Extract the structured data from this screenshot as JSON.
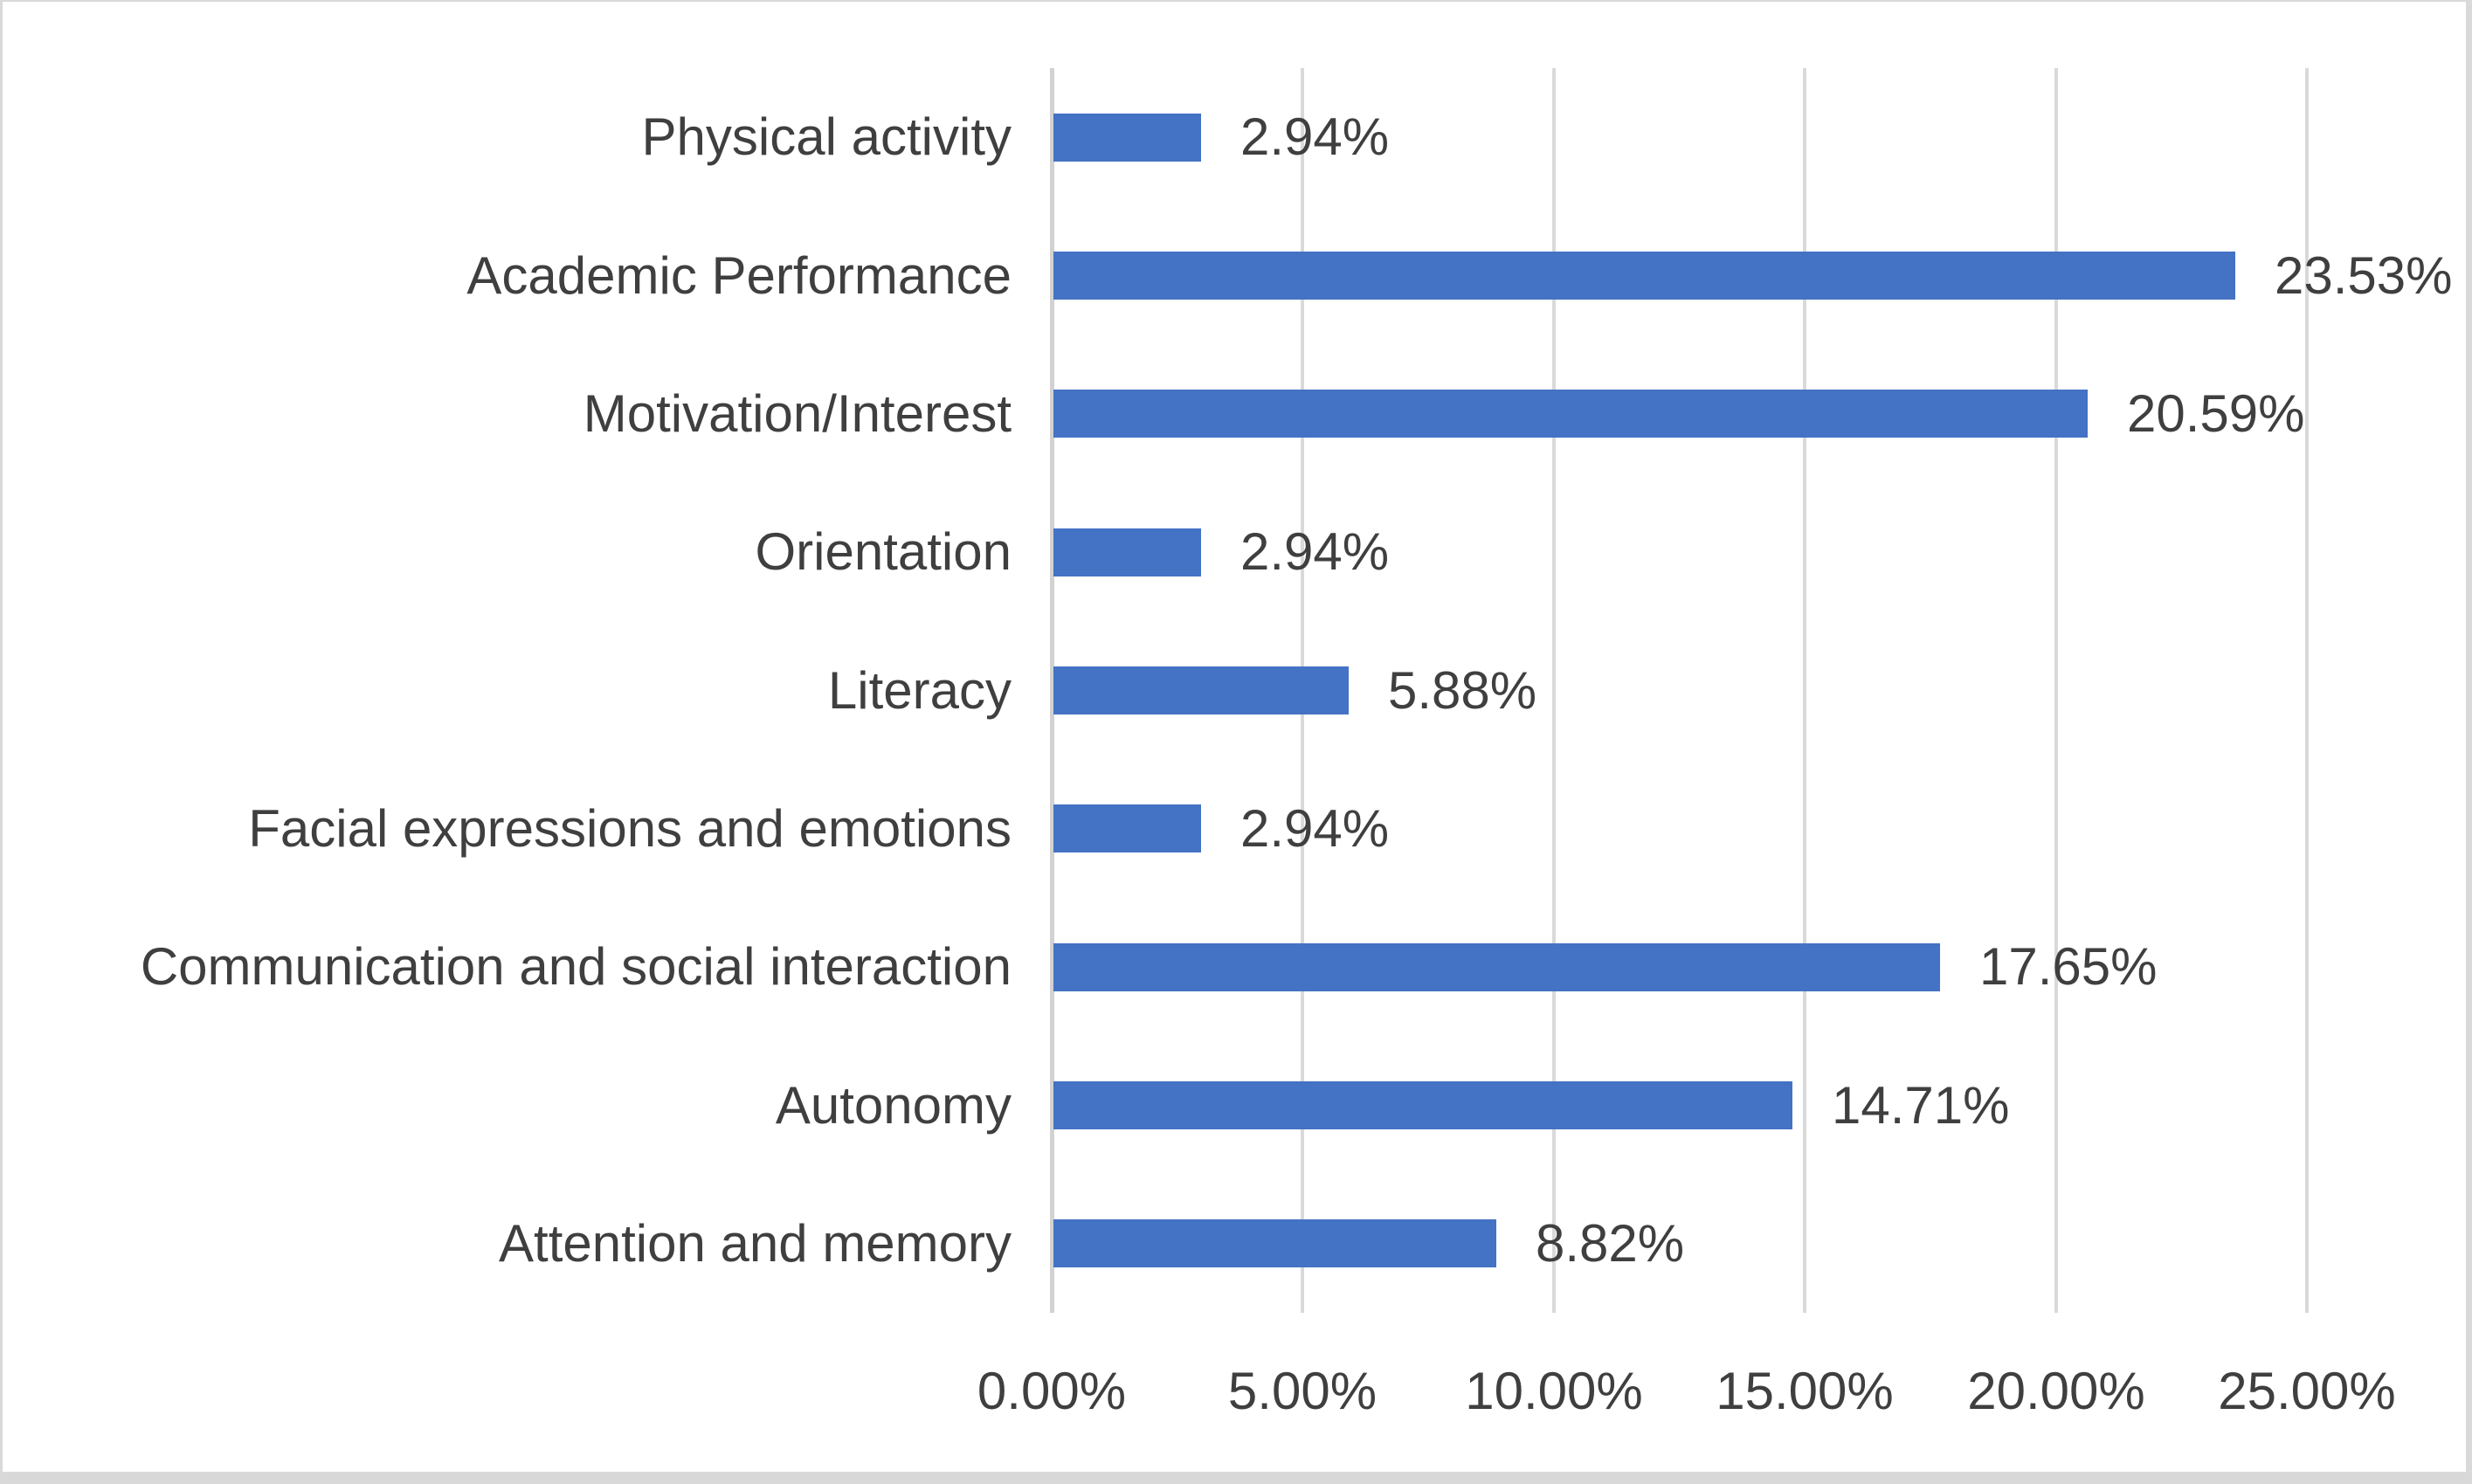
{
  "chart_data": {
    "type": "bar",
    "orientation": "horizontal",
    "title": "",
    "legend": "none",
    "gridlines": "vertical",
    "data_label_position": "outside-end",
    "categories": [
      "Physical activity",
      "Academic Performance",
      "Motivation/Interest",
      "Orientation",
      "Literacy",
      "Facial expressions and emotions",
      "Communication and social interaction",
      "Autonomy",
      "Attention and memory"
    ],
    "values": [
      2.94,
      23.53,
      20.59,
      2.94,
      5.88,
      2.94,
      17.65,
      14.71,
      8.82
    ],
    "data_labels": [
      "2.94%",
      "23.53%",
      "20.59%",
      "2.94%",
      "5.88%",
      "2.94%",
      "17.65%",
      "14.71%",
      "8.82%"
    ],
    "x_axis": {
      "min": 0,
      "max": 25,
      "tick_values": [
        0,
        5,
        10,
        15,
        20,
        25
      ],
      "tick_labels": [
        "0.00%",
        "5.00%",
        "10.00%",
        "15.00%",
        "20.00%",
        "25.00%"
      ]
    },
    "colors": {
      "bar": "#4472C4",
      "gridline": "#D9D9D9",
      "axis_line": "#D2D2D2",
      "text": "#3F3F3F",
      "background": "#FFFFFF",
      "frame_border": "#D9D9D9"
    }
  }
}
